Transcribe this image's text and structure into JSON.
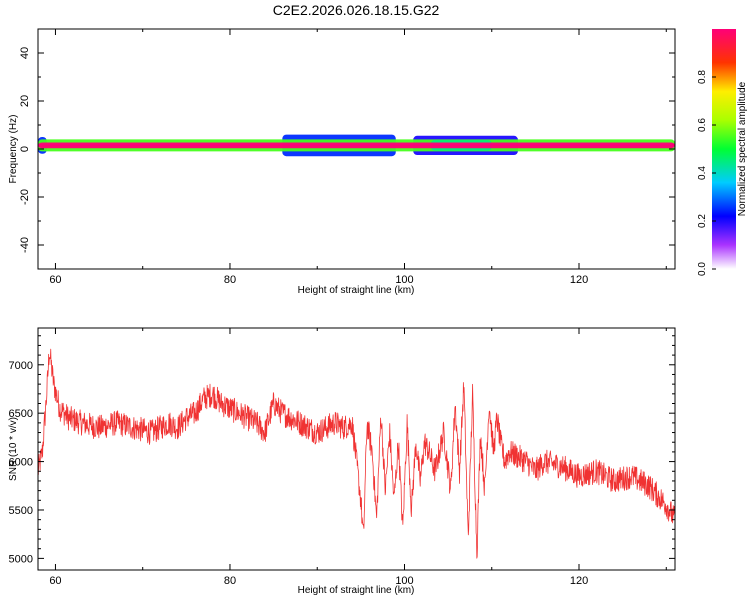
{
  "figure_title": "C2E2.2026.026.18.15.G22",
  "colors": {
    "snr_line": "#f03232",
    "axis": "#000000",
    "background": "#ffffff"
  },
  "chart_data": [
    {
      "type": "heatmap",
      "title": "",
      "xlabel": "Height of straight line (km)",
      "ylabel": "Frequency (Hz)",
      "xlim": [
        58,
        131
      ],
      "ylim": [
        -50,
        50
      ],
      "xticks": [
        60,
        80,
        100,
        120
      ],
      "yticks": [
        -40,
        -20,
        0,
        20,
        40
      ],
      "grid": false,
      "colorbar": {
        "label": "Normalized spectral amplitude",
        "range": [
          0,
          1
        ],
        "ticks": [
          "0.0",
          "0.2",
          "0.4",
          "0.6",
          "0.8"
        ]
      },
      "band": {
        "center_hz": 1.5,
        "core_amplitude": 1.0,
        "segments": [
          {
            "x_range": [
              58,
              131
            ],
            "half_width_hz": 1.2,
            "amplitude": 1.0
          },
          {
            "x_range": [
              58,
              131
            ],
            "half_width_hz": 2.5,
            "amplitude": 0.55
          },
          {
            "x_range": [
              58,
              59
            ],
            "half_width_hz": 3.5,
            "amplitude": 0.25
          },
          {
            "x_range": [
              86,
              99
            ],
            "half_width_hz": 4.5,
            "amplitude": 0.25
          },
          {
            "x_range": [
              101,
              113
            ],
            "half_width_hz": 4.0,
            "amplitude": 0.2
          },
          {
            "x_range": [
              103,
              110
            ],
            "half_width_hz": 2.2,
            "amplitude": 0.45
          }
        ]
      }
    },
    {
      "type": "line",
      "title": "",
      "xlabel": "Height of straight line (km)",
      "ylabel": "SNR (10 * v/v)",
      "xlim": [
        58,
        131
      ],
      "ylim": [
        4880,
        7380
      ],
      "xticks": [
        60,
        80,
        100,
        120
      ],
      "yticks": [
        5000,
        5500,
        6000,
        6500,
        7000
      ],
      "grid": false,
      "series": [
        {
          "color": "#f03232",
          "x": [
            58,
            58.5,
            59,
            59.3,
            59.8,
            60.5,
            61.5,
            63,
            65,
            67,
            69,
            71,
            73,
            74,
            75,
            76,
            77,
            78,
            79,
            80,
            81,
            82,
            83,
            84,
            85,
            86,
            87,
            88,
            89,
            90,
            91,
            92,
            93,
            94,
            95,
            95.3,
            95.7,
            96.3,
            96.8,
            97.3,
            97.8,
            98.3,
            98.8,
            99.3,
            99.8,
            100.3,
            100.8,
            101.3,
            101.8,
            102.3,
            102.8,
            103.5,
            104.5,
            105.3,
            105.8,
            106.3,
            106.8,
            107.3,
            107.8,
            108.3,
            108.7,
            109.2,
            109.7,
            110.2,
            110.6,
            111,
            111.5,
            112,
            113,
            114,
            115,
            116,
            118,
            120,
            122,
            124,
            126,
            128,
            129,
            130,
            131
          ],
          "values": [
            5900,
            6100,
            6700,
            7150,
            6800,
            6550,
            6450,
            6400,
            6350,
            6400,
            6350,
            6300,
            6400,
            6350,
            6450,
            6500,
            6650,
            6700,
            6600,
            6550,
            6500,
            6450,
            6400,
            6300,
            6600,
            6500,
            6450,
            6400,
            6350,
            6300,
            6350,
            6400,
            6350,
            6400,
            5600,
            5200,
            6400,
            6100,
            5400,
            6500,
            5700,
            6300,
            5600,
            6200,
            5300,
            6400,
            5500,
            6200,
            5800,
            6200,
            6100,
            5900,
            6300,
            5700,
            6600,
            5900,
            6800,
            5200,
            6700,
            5050,
            6300,
            5700,
            6600,
            6100,
            6450,
            6200,
            6000,
            6100,
            6050,
            6000,
            5900,
            6000,
            5950,
            5850,
            5900,
            5800,
            5850,
            5750,
            5650,
            5550,
            5400
          ]
        }
      ]
    }
  ]
}
